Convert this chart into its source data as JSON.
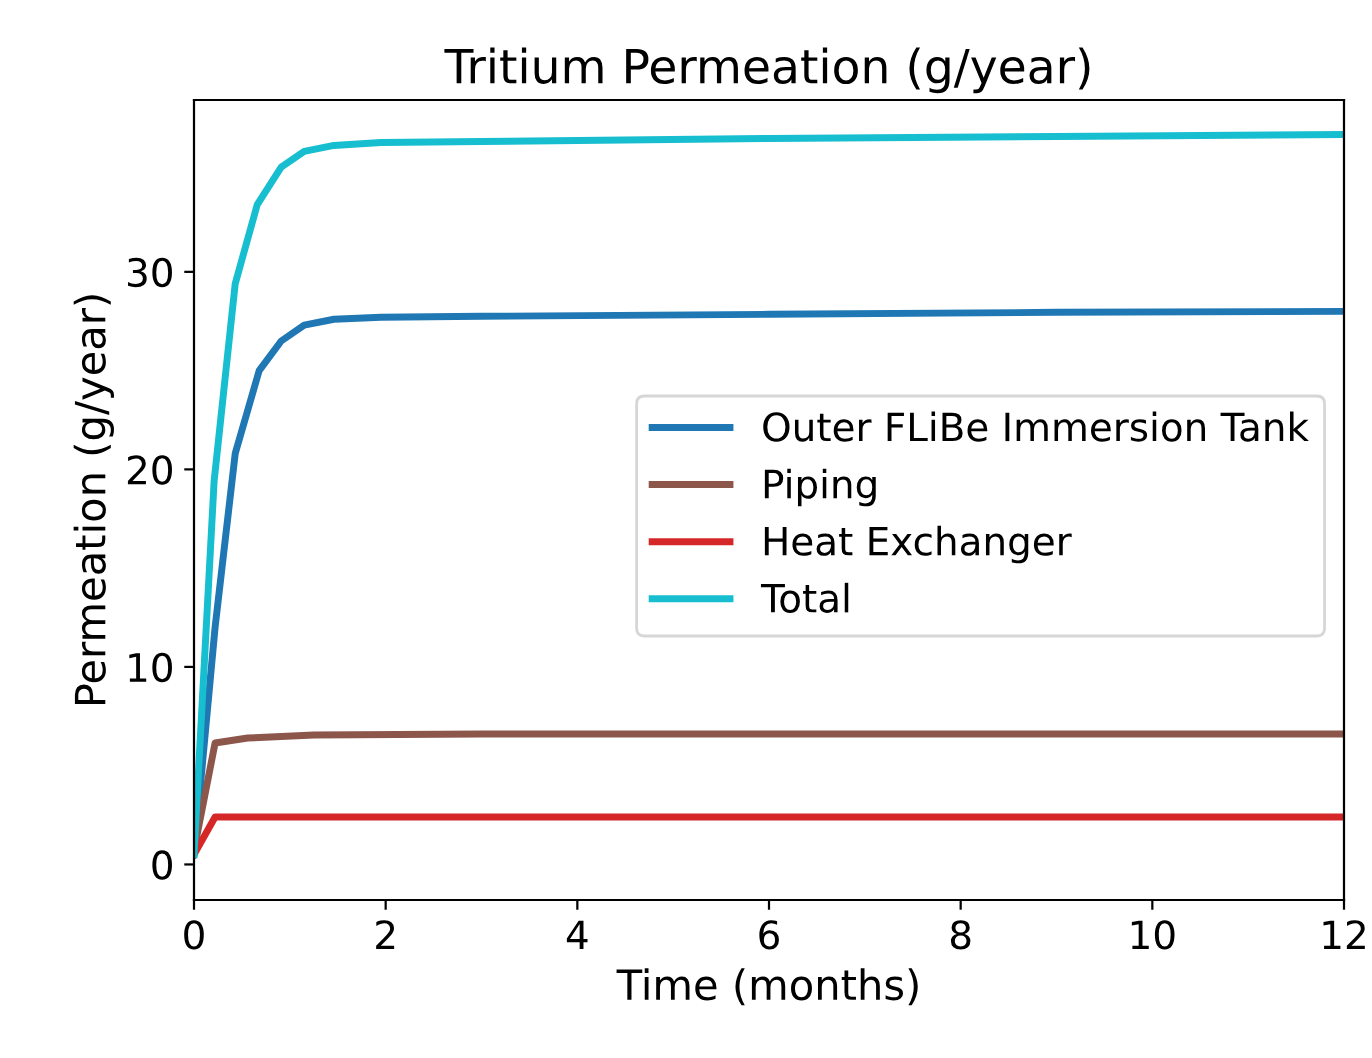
{
  "chart_data": {
    "type": "line",
    "title": "Tritium Permeation (g/year)",
    "xlabel": "Time (months)",
    "ylabel": "Permeation (g/year)",
    "xlim": [
      0,
      12
    ],
    "ylim": [
      -1.8,
      38.7
    ],
    "xticks": [
      0,
      2,
      4,
      6,
      8,
      10,
      12
    ],
    "yticks": [
      0,
      10,
      20,
      30
    ],
    "grid": false,
    "legend": "right",
    "line_style": "solid",
    "marker": "none",
    "series": [
      {
        "name": "Outer FLiBe Immersion Tank",
        "color": "#1f77b4",
        "x": [
          0,
          0.22,
          0.43,
          0.68,
          0.91,
          1.15,
          1.46,
          1.95,
          3,
          6,
          9,
          12
        ],
        "values": [
          0.5,
          12,
          20.8,
          25.0,
          26.5,
          27.3,
          27.6,
          27.7,
          27.75,
          27.85,
          27.95,
          28.0
        ]
      },
      {
        "name": "Piping",
        "color": "#8c564b",
        "x": [
          0,
          0.22,
          0.56,
          1.25,
          3,
          12
        ],
        "values": [
          0.7,
          6.15,
          6.4,
          6.55,
          6.6,
          6.6
        ]
      },
      {
        "name": "Heat Exchanger",
        "color": "#d62728",
        "x": [
          0,
          0.22,
          12
        ],
        "values": [
          0.5,
          2.4,
          2.4
        ]
      },
      {
        "name": "Total",
        "color": "#17becf",
        "x": [
          0,
          0.21,
          0.43,
          0.66,
          0.91,
          1.15,
          1.46,
          1.95,
          3,
          6,
          9,
          12
        ],
        "values": [
          0.5,
          19.4,
          29.4,
          33.4,
          35.3,
          36.1,
          36.4,
          36.55,
          36.6,
          36.75,
          36.85,
          36.95
        ]
      }
    ]
  }
}
